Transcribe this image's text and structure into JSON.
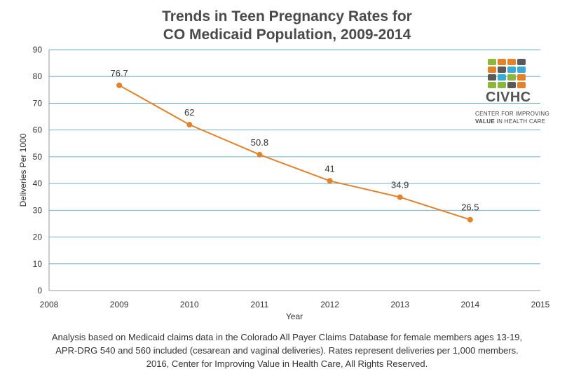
{
  "title": {
    "line1": "Trends in Teen Pregnancy Rates for",
    "line2": "CO Medicaid Population, 2009-2014"
  },
  "chart_data": {
    "type": "line",
    "title": "Trends in Teen Pregnancy Rates for CO Medicaid Population, 2009-2014",
    "xlabel": "Year",
    "ylabel": "Deliveries Per 1000",
    "x": [
      2009,
      2010,
      2011,
      2012,
      2013,
      2014
    ],
    "series": [
      {
        "values": [
          76.7,
          62,
          50.8,
          41,
          34.9,
          26.5
        ]
      }
    ],
    "data_labels": [
      "76.7",
      "62",
      "50.8",
      "41",
      "34.9",
      "26.5"
    ],
    "xlim": [
      2008,
      2015
    ],
    "ylim": [
      0,
      90
    ],
    "xticks": [
      "2008",
      "2009",
      "2010",
      "2011",
      "2012",
      "2013",
      "2014",
      "2015"
    ],
    "yticks": [
      "0",
      "10",
      "20",
      "30",
      "40",
      "50",
      "60",
      "70",
      "80",
      "90"
    ],
    "grid": "horizontal",
    "legend": "none",
    "colors": {
      "line": "#e2822b",
      "grid": "#6fb3c8",
      "axis": "#999999"
    }
  },
  "logo": {
    "name": "CIVHC",
    "sub_line1": "CENTER FOR IMPROVING",
    "sub_line2_bold": "VALUE",
    "sub_line2_rest": " IN HEALTH CARE",
    "colors": [
      "#8cb63c",
      "#e2822b",
      "#5a5a5a",
      "#3aaad6"
    ]
  },
  "footnote": {
    "line1": "Analysis based on Medicaid claims data in the Colorado All Payer Claims Database for female members ages 13-19,",
    "line2": "APR-DRG 540 and 560 included (cesarean and vaginal deliveries). Rates represent deliveries per 1,000 members.",
    "line3": "2016, Center for Improving Value in Health Care, All Rights Reserved."
  }
}
